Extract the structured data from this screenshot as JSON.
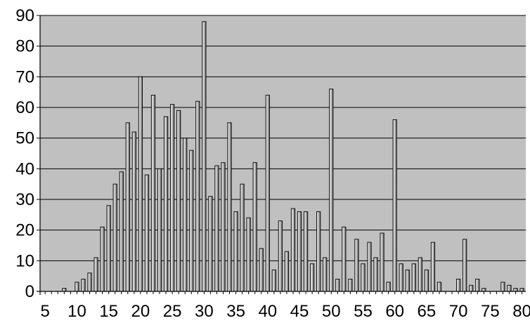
{
  "chart_data": {
    "type": "bar",
    "title": "",
    "xlabel": "",
    "ylabel": "",
    "x": [
      5,
      6,
      7,
      8,
      9,
      10,
      11,
      12,
      13,
      14,
      15,
      16,
      17,
      18,
      19,
      20,
      21,
      22,
      23,
      24,
      25,
      26,
      27,
      28,
      29,
      30,
      31,
      32,
      33,
      34,
      35,
      36,
      37,
      38,
      39,
      40,
      41,
      42,
      43,
      44,
      45,
      46,
      47,
      48,
      49,
      50,
      51,
      52,
      53,
      54,
      55,
      56,
      57,
      58,
      59,
      60,
      61,
      62,
      63,
      64,
      65,
      66,
      67,
      68,
      69,
      70,
      71,
      72,
      73,
      74,
      75,
      76,
      77,
      78,
      79,
      80
    ],
    "values": [
      0,
      0,
      0,
      1,
      0,
      3,
      4,
      6,
      11,
      21,
      28,
      35,
      39,
      55,
      52,
      70,
      38,
      64,
      40,
      57,
      61,
      59,
      50,
      46,
      62,
      88,
      31,
      41,
      42,
      55,
      26,
      35,
      24,
      42,
      14,
      64,
      7,
      23,
      13,
      27,
      26,
      26,
      9,
      26,
      11,
      66,
      4,
      21,
      4,
      17,
      9,
      16,
      11,
      19,
      3,
      56,
      9,
      7,
      9,
      11,
      7,
      16,
      3,
      0,
      0,
      4,
      17,
      2,
      4,
      1,
      0,
      0,
      3,
      2,
      1,
      1
    ],
    "xlim": [
      4.2,
      80.6
    ],
    "ylim": [
      0,
      90
    ],
    "x_tick_labels": [
      "5",
      "10",
      "15",
      "20",
      "25",
      "30",
      "35",
      "40",
      "45",
      "50",
      "55",
      "60",
      "65",
      "70",
      "75",
      "80"
    ],
    "y_tick_labels": [
      "0",
      "10",
      "20",
      "30",
      "40",
      "50",
      "60",
      "70",
      "80",
      "90"
    ],
    "grid": true,
    "legend": "none",
    "colors": {
      "plot_background": "#c0c0c0",
      "bar_fill_light": "#f0f0f0",
      "bar_fill_dark": "#6a6a6a",
      "gridline": "#000000",
      "axis": "#000000"
    }
  }
}
